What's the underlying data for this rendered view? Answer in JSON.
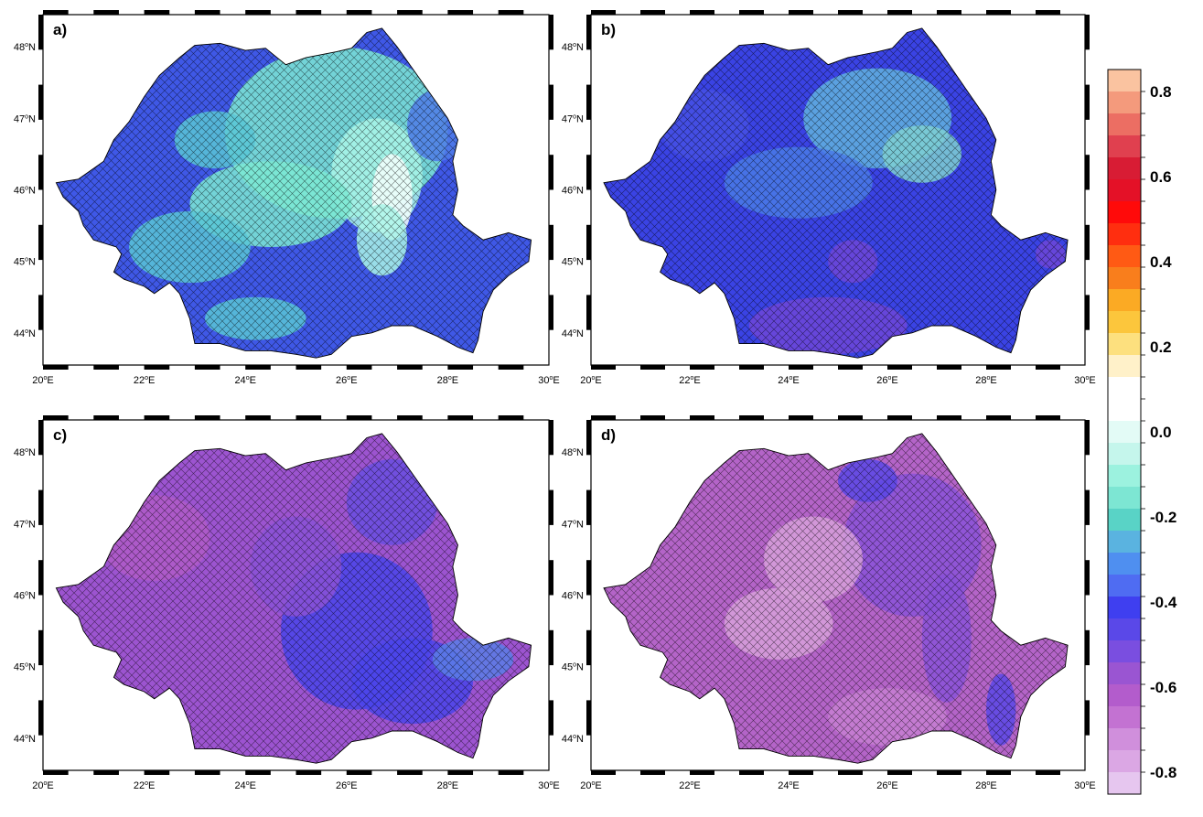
{
  "panels": [
    {
      "id": "a",
      "label": "a)",
      "palette_index": 0
    },
    {
      "id": "b",
      "label": "b)",
      "palette_index": 1
    },
    {
      "id": "c",
      "label": "c)",
      "palette_index": 2
    },
    {
      "id": "d",
      "label": "d)",
      "palette_index": 3
    }
  ],
  "lat_ticks": [
    {
      "value": 44,
      "num": "44",
      "unit": "N"
    },
    {
      "value": 45,
      "num": "45",
      "unit": "N"
    },
    {
      "value": 46,
      "num": "46",
      "unit": "N"
    },
    {
      "value": 47,
      "num": "47",
      "unit": "N"
    },
    {
      "value": 48,
      "num": "48",
      "unit": "N"
    }
  ],
  "lon_ticks": [
    {
      "value": 20,
      "num": "20",
      "unit": "E"
    },
    {
      "value": 22,
      "num": "22",
      "unit": "E"
    },
    {
      "value": 24,
      "num": "24",
      "unit": "E"
    },
    {
      "value": 26,
      "num": "26",
      "unit": "E"
    },
    {
      "value": 28,
      "num": "28",
      "unit": "E"
    },
    {
      "value": 30,
      "num": "30",
      "unit": "E"
    }
  ],
  "lon_range": [
    20,
    30
  ],
  "lat_range": [
    43.55,
    48.45
  ],
  "colorbar": {
    "min": -0.8,
    "max": 0.8,
    "labels": [
      "0.8",
      "0.6",
      "0.4",
      "0.2",
      "0.0",
      "-0.2",
      "-0.4",
      "-0.6",
      "-0.8"
    ],
    "colors": [
      "#fac3a0",
      "#f49a7c",
      "#ec6e63",
      "#e0404f",
      "#d81c34",
      "#e41127",
      "#ff0a0a",
      "#ff2e0f",
      "#ff5a14",
      "#f97e1c",
      "#fbaa24",
      "#fcc63c",
      "#fde07e",
      "#fff1c9",
      "#ffffff",
      "#ffffff",
      "#e3fbf6",
      "#c5f6ec",
      "#9cf2df",
      "#7de6d3",
      "#59d3c6",
      "#5ab3e0",
      "#4f8ff0",
      "#4f6cf2",
      "#3f3ff0",
      "#5a48e8",
      "#7a4ee0",
      "#9a55d2",
      "#b35ccc",
      "#c372d2",
      "#d08fdc",
      "#dba7e4",
      "#e6c6ef"
    ]
  },
  "palettes": [
    [
      "#3f58e6",
      "#4f7be8",
      "#59c6d6",
      "#7de9d3",
      "#a9f5e7",
      "#f3fffd"
    ],
    [
      "#3a43e4",
      "#4650e4",
      "#4a7ae6",
      "#62b2df",
      "#6e46d8",
      "#7fd0d2"
    ],
    [
      "#9c54d0",
      "#b05cc8",
      "#8a52d6",
      "#6a4fe0",
      "#4a45ea",
      "#5a7ee6"
    ],
    [
      "#b464c8",
      "#c77fd2",
      "#a65ccc",
      "#d7a0da",
      "#8a52d8",
      "#5a48e6"
    ]
  ]
}
